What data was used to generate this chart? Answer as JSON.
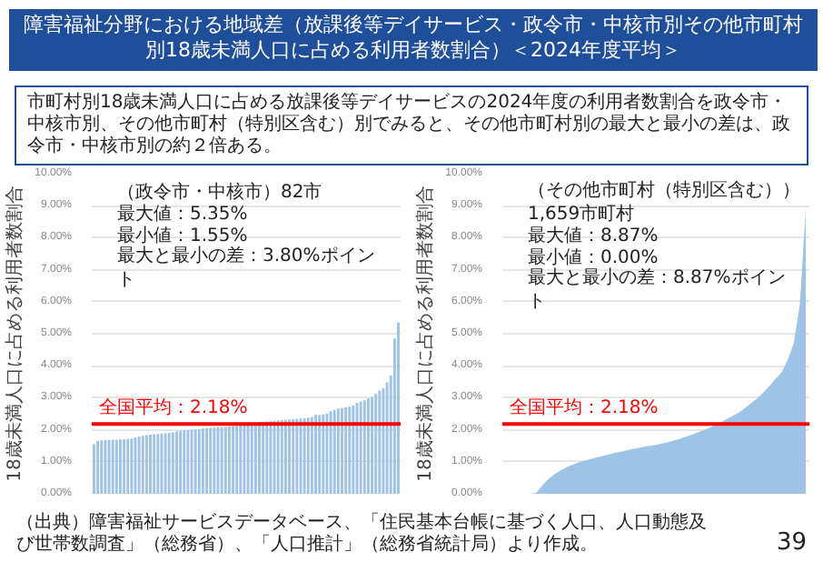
{
  "chart_data": [
    {
      "type": "bar",
      "title": "障害福祉分野における地域差（放課後等デイサービス・政令市・中核市別その他市町村別18歳未満人口に占める利用者数割合）＜2024年度平均＞",
      "subtitle": "市町村別18歳未満人口に占める放課後等デイサービスの2024年度の利用者数割合を政令市・中核市別、その他市町村（特別区含む）別でみると、その他市町村別の最大と最小の差は、政令市・中核市別の約２倍ある。",
      "ylabel": "18歳未満人口に占める利用者数割合",
      "annotations": [
        "（政令市・中核市）82市",
        "最大値：5.35%",
        "最小値：1.55%",
        "最大と最小の差：3.80%ポイント"
      ],
      "categories": [
        null,
        null,
        null,
        null,
        null,
        null,
        null,
        null,
        null,
        null,
        null,
        null,
        null,
        null,
        null,
        null,
        null,
        null,
        null,
        null,
        null,
        null,
        null,
        null,
        null,
        null,
        null,
        null,
        null,
        null,
        null,
        null,
        null,
        null,
        null,
        null,
        null,
        null,
        null,
        null,
        null,
        null,
        null,
        null,
        null,
        null,
        null,
        null,
        null,
        null,
        null,
        null,
        null,
        null,
        null,
        null,
        null,
        null,
        null,
        null,
        null,
        null,
        null,
        null,
        null,
        null,
        null,
        null,
        null,
        null,
        null,
        null,
        null,
        null,
        null,
        null,
        null,
        null,
        null,
        null,
        null,
        null
      ],
      "values": [
        1.55,
        1.65,
        1.67,
        1.68,
        1.68,
        1.69,
        1.69,
        1.7,
        1.7,
        1.71,
        1.73,
        1.76,
        1.79,
        1.81,
        1.83,
        1.85,
        1.86,
        1.87,
        1.88,
        1.89,
        1.9,
        1.92,
        1.95,
        1.97,
        1.98,
        1.99,
        2.0,
        2.01,
        2.02,
        2.04,
        2.05,
        2.06,
        2.07,
        2.08,
        2.08,
        2.09,
        2.1,
        2.11,
        2.12,
        2.14,
        2.16,
        2.18,
        2.2,
        2.22,
        2.24,
        2.25,
        2.26,
        2.27,
        2.28,
        2.29,
        2.3,
        2.31,
        2.32,
        2.33,
        2.34,
        2.35,
        2.36,
        2.38,
        2.4,
        2.46,
        2.46,
        2.48,
        2.5,
        2.58,
        2.62,
        2.66,
        2.68,
        2.7,
        2.72,
        2.76,
        2.84,
        2.88,
        2.92,
        2.98,
        3.02,
        3.12,
        3.22,
        3.3,
        3.48,
        3.7,
        4.85,
        5.35
      ],
      "color": "#9dc3e6",
      "ylim": [
        0,
        10
      ],
      "yticks": [
        {
          "value": 0,
          "label": "0.00%"
        },
        {
          "value": 1,
          "label": "1.00%"
        },
        {
          "value": 2,
          "label": "2.00%"
        },
        {
          "value": 3,
          "label": "3.00%"
        },
        {
          "value": 4,
          "label": "4.00%"
        },
        {
          "value": 5,
          "label": "5.00%"
        },
        {
          "value": 6,
          "label": "6.00%"
        },
        {
          "value": 7,
          "label": "7.00%"
        },
        {
          "value": 8,
          "label": "8.00%"
        },
        {
          "value": 9,
          "label": "9.00%"
        },
        {
          "value": 10,
          "label": "10.00%"
        }
      ],
      "ref_lines": [
        {
          "axis": "y",
          "value": 2.18,
          "label": "全国平均：2.18%",
          "color": "#ff0000"
        }
      ],
      "grid": "y",
      "tick_labels": "y"
    },
    {
      "type": "area",
      "ylabel": "18歳未満人口に占める利用者数割合",
      "annotations": [
        "（その他市町村（特別区含む））1,659市町村",
        "最大値：8.87%",
        "最小値：0.00%",
        "最大と最小の差：8.87%ポイント",
        "（出典）障害福祉サービスデータベース、「住民基本台帳に基づく人口、人口動態及び世帯数調査」（総務省）、「人口推計」（総務省統計局）より作成。",
        "39"
      ],
      "categories": [
        null,
        null,
        null,
        null,
        null,
        null,
        null,
        null,
        null,
        null,
        null,
        null,
        null,
        null,
        null,
        null,
        null,
        null,
        null,
        null,
        null,
        null,
        null,
        null,
        null,
        null,
        null,
        null,
        null,
        null,
        null,
        null,
        null,
        null,
        null,
        null,
        null,
        null,
        null,
        null,
        null,
        null,
        null,
        null,
        null,
        null,
        null,
        null,
        null,
        null,
        null
      ],
      "values": [
        0,
        0,
        0,
        0,
        0,
        0.02,
        0.25,
        0.45,
        0.6,
        0.72,
        0.82,
        0.9,
        0.97,
        1.03,
        1.08,
        1.13,
        1.18,
        1.22,
        1.27,
        1.31,
        1.35,
        1.39,
        1.43,
        1.47,
        1.5,
        1.53,
        1.57,
        1.61,
        1.66,
        1.72,
        1.78,
        1.85,
        1.92,
        1.99,
        2.07,
        2.16,
        2.25,
        2.35,
        2.45,
        2.56,
        2.7,
        2.85,
        3.0,
        3.18,
        3.38,
        3.6,
        3.8,
        4.2,
        4.7,
        5.9,
        8.87
      ],
      "color": "#9dc3e6",
      "ylim": [
        0,
        10
      ],
      "yticks": [
        {
          "value": 0,
          "label": "0.00%"
        },
        {
          "value": 1,
          "label": "1.00%"
        },
        {
          "value": 2,
          "label": "2.00%"
        },
        {
          "value": 3,
          "label": "3.00%"
        },
        {
          "value": 4,
          "label": "4.00%"
        },
        {
          "value": 5,
          "label": "5.00%"
        },
        {
          "value": 6,
          "label": "6.00%"
        },
        {
          "value": 7,
          "label": "7.00%"
        },
        {
          "value": 8,
          "label": "8.00%"
        },
        {
          "value": 9,
          "label": "9.00%"
        },
        {
          "value": 10,
          "label": "10.00%"
        }
      ],
      "ref_lines": [
        {
          "axis": "y",
          "value": 2.18,
          "label": "全国平均：2.18%",
          "color": "#ff0000"
        }
      ],
      "grid": "y",
      "tick_labels": "y"
    }
  ]
}
